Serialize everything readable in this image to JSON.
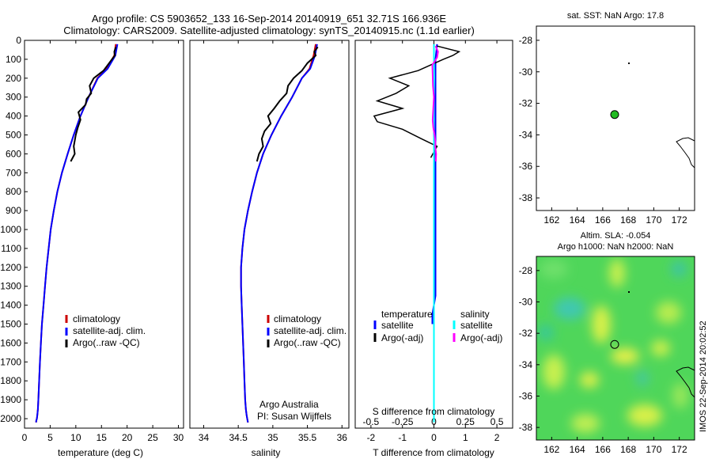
{
  "header": {
    "line1": "Argo profile: CS 5903652_133 16-Sep-2014 20140919_651 32.71S 166.936E",
    "line2": "Climatology: CARS2009. Satellite-adjusted climatology: synTS_20140915.nc (1.1d earlier)"
  },
  "colors": {
    "climatology": "#cc0000",
    "satellite_temp": "#0000ff",
    "argo": "#000000",
    "satellite_sal": "#00ffff",
    "argo_sal": "#ff00ff",
    "land": "#000000",
    "float_marker": "#22bb22"
  },
  "legend": {
    "climatology": "climatology",
    "satellite": "satellite-adj. clim.",
    "argo": "Argo(..raw -QC)"
  },
  "diff_legend": {
    "temperature": "temperature",
    "salinity": "salinity",
    "satellite_t": "satellite",
    "argo_t": "Argo(-adj)",
    "satellite_s": "satellite",
    "argo_s": "Argo(-adj)"
  },
  "credit": {
    "line1": "Argo Australia",
    "line2": "PI: Susan Wijffels"
  },
  "sst_map": {
    "title": "sat. SST: NaN Argo: 17.8"
  },
  "sla_map": {
    "title1": "Altim. SLA: -0.054",
    "title2": "Argo h1000: NaN h2000: NaN"
  },
  "stamp": "IMOS 22-Sep-2014 20:02:52",
  "chart_data": [
    {
      "type": "line",
      "panel": "temperature",
      "xlabel": "temperature (deg C)",
      "ylabel": "",
      "xlim": [
        0,
        31
      ],
      "ylim": [
        2050,
        0
      ],
      "xticks": [
        0,
        5,
        10,
        15,
        20,
        25,
        30
      ],
      "yticks": [
        0,
        100,
        200,
        300,
        400,
        500,
        600,
        700,
        800,
        900,
        1000,
        1100,
        1200,
        1300,
        1400,
        1500,
        1600,
        1700,
        1800,
        1900,
        2000
      ],
      "series": [
        {
          "name": "climatology",
          "color": "#cc0000",
          "x": [
            17.8,
            17.5,
            16,
            14.2,
            12.5,
            10.9,
            9.6,
            8.4,
            7.3,
            6.4,
            5.7,
            5.1,
            4.7,
            4.3,
            4.0,
            3.7,
            3.4,
            3.2,
            3.0,
            2.85,
            2.7,
            2.6,
            2.5,
            2.4,
            2.3,
            2.25
          ],
          "y": [
            20,
            80,
            150,
            200,
            300,
            400,
            500,
            600,
            700,
            800,
            900,
            1000,
            1100,
            1200,
            1300,
            1400,
            1500,
            1600,
            1700,
            1800,
            1900,
            1950,
            1980,
            2000,
            2010,
            2020
          ]
        },
        {
          "name": "satellite-adj. clim.",
          "color": "#0000ff",
          "x": [
            18.1,
            17.7,
            16.2,
            14.3,
            12.5,
            10.9,
            9.6,
            8.4,
            7.3,
            6.4,
            5.7,
            5.1,
            4.7,
            4.3,
            4.0,
            3.7,
            3.4,
            3.2,
            3.0,
            2.85,
            2.7,
            2.6,
            2.5,
            2.4,
            2.3,
            2.25
          ],
          "y": [
            20,
            80,
            150,
            200,
            300,
            400,
            500,
            600,
            700,
            800,
            900,
            1000,
            1100,
            1200,
            1300,
            1400,
            1500,
            1600,
            1700,
            1800,
            1900,
            1950,
            1980,
            2000,
            2010,
            2020
          ]
        },
        {
          "name": "Argo(..raw -QC)",
          "color": "#000000",
          "x": [
            17.8,
            17.5,
            17.6,
            16.5,
            15.4,
            13.5,
            12.7,
            13.0,
            12.1,
            11.9,
            10.5,
            10.9,
            10.4,
            10.0,
            9.6,
            9.8,
            9.0
          ],
          "y": [
            35,
            60,
            80,
            120,
            160,
            200,
            240,
            280,
            310,
            340,
            380,
            420,
            460,
            500,
            560,
            600,
            640
          ]
        }
      ]
    },
    {
      "type": "line",
      "panel": "salinity",
      "xlabel": "salinity",
      "xlim": [
        33.8,
        36.1
      ],
      "ylim": [
        2050,
        0
      ],
      "xticks": [
        34,
        34.5,
        35,
        35.5,
        36
      ],
      "series": [
        {
          "name": "climatology",
          "color": "#cc0000",
          "x": [
            35.62,
            35.59,
            35.53,
            35.42,
            35.28,
            35.12,
            34.98,
            34.86,
            34.77,
            34.7,
            34.64,
            34.59,
            34.56,
            34.54,
            34.54,
            34.55,
            34.56,
            34.57,
            34.58,
            34.59,
            34.6,
            34.61,
            34.62,
            34.63,
            34.64
          ],
          "y": [
            20,
            80,
            150,
            200,
            300,
            400,
            500,
            600,
            700,
            800,
            900,
            1000,
            1100,
            1200,
            1300,
            1400,
            1500,
            1600,
            1700,
            1800,
            1900,
            1950,
            1980,
            2000,
            2020
          ]
        },
        {
          "name": "satellite-adj. clim.",
          "color": "#0000ff",
          "x": [
            35.64,
            35.61,
            35.54,
            35.42,
            35.28,
            35.12,
            34.98,
            34.86,
            34.77,
            34.7,
            34.64,
            34.59,
            34.56,
            34.54,
            34.54,
            34.55,
            34.56,
            34.57,
            34.58,
            34.59,
            34.6,
            34.61,
            34.62,
            34.63,
            34.64
          ],
          "y": [
            20,
            80,
            150,
            200,
            300,
            400,
            500,
            600,
            700,
            800,
            900,
            1000,
            1100,
            1200,
            1300,
            1400,
            1500,
            1600,
            1700,
            1800,
            1900,
            1950,
            1980,
            2000,
            2020
          ]
        },
        {
          "name": "Argo(..raw -QC)",
          "color": "#000000",
          "x": [
            35.65,
            35.6,
            35.62,
            35.5,
            35.42,
            35.3,
            35.22,
            35.2,
            35.1,
            35.02,
            34.93,
            34.97,
            34.88,
            34.84,
            34.86,
            34.8,
            34.77
          ],
          "y": [
            35,
            60,
            80,
            120,
            160,
            200,
            240,
            280,
            320,
            360,
            400,
            440,
            480,
            520,
            560,
            600,
            640
          ]
        }
      ]
    },
    {
      "type": "line",
      "panel": "difference",
      "xlabel": "T difference from climatology",
      "xlabel_top": "S difference from climatology",
      "xlim": [
        -2.5,
        2.5
      ],
      "ylim": [
        2050,
        0
      ],
      "xticks": [
        -2,
        -1,
        0,
        1,
        2
      ],
      "xticks_s": [
        -0.5,
        -0.25,
        0,
        0.25,
        0.5
      ],
      "series": [
        {
          "name": "temperature satellite",
          "color": "#0000ff",
          "x": [
            0.1,
            0.05,
            0.05,
            0.05,
            0.05,
            0.05,
            0.05,
            0.05,
            0.05,
            0.05,
            0.05,
            0.05,
            0.05,
            0.05,
            0.05,
            0.0,
            -0.05,
            -0.05
          ],
          "y": [
            20,
            100,
            200,
            300,
            400,
            500,
            600,
            700,
            800,
            900,
            1000,
            1100,
            1200,
            1300,
            1350,
            1400,
            1450,
            1500
          ]
        },
        {
          "name": "temperature Argo(-adj)",
          "color": "#000000",
          "x": [
            0.1,
            0.8,
            0.6,
            0.3,
            -0.1,
            -0.5,
            -1.4,
            -0.8,
            -1.2,
            -1.8,
            -1.0,
            -1.9,
            -1.8,
            -1.0,
            -0.4,
            0.1,
            0.0,
            -0.1
          ],
          "y": [
            30,
            60,
            80,
            100,
            130,
            160,
            200,
            240,
            280,
            320,
            360,
            400,
            430,
            470,
            520,
            560,
            590,
            620
          ]
        },
        {
          "name": "salinity satellite",
          "color": "#00ffff",
          "x": [
            0.0,
            0.0,
            0.01,
            0.0,
            0.0,
            0.0,
            0.0,
            0.0,
            0.0,
            0.0,
            0.0,
            0.0,
            0.0,
            0.0,
            0.0,
            0.0,
            0.0,
            0.0,
            0.0,
            0.0,
            0.0,
            0.0
          ],
          "y": [
            20,
            100,
            200,
            300,
            400,
            500,
            600,
            700,
            800,
            900,
            1000,
            1100,
            1200,
            1300,
            1400,
            1500,
            1600,
            1700,
            1800,
            1900,
            2000,
            2020
          ]
        },
        {
          "name": "salinity Argo(-adj)",
          "color": "#ff00ff",
          "x": [
            0.05,
            0.13,
            0.1,
            -0.05,
            -0.04,
            -0.03,
            0.0,
            -0.02,
            -0.04,
            -0.02,
            0.02,
            0.05,
            0.04,
            0.07,
            0.06
          ],
          "y": [
            30,
            60,
            90,
            130,
            180,
            240,
            300,
            360,
            420,
            460,
            500,
            540,
            560,
            600,
            640
          ]
        }
      ]
    },
    {
      "type": "scatter",
      "panel": "sst_map",
      "xlim": [
        160.8,
        173.2
      ],
      "ylim": [
        -38.8,
        -27.1
      ],
      "xticks": [
        162,
        164,
        166,
        168,
        170,
        172
      ],
      "yticks": [
        -28,
        -30,
        -32,
        -34,
        -36,
        -38
      ],
      "points": [
        {
          "lon": 166.936,
          "lat": -32.71
        }
      ]
    },
    {
      "type": "heatmap",
      "panel": "sla_map",
      "xlim": [
        160.8,
        173.2
      ],
      "ylim": [
        -38.8,
        -27.1
      ],
      "xticks": [
        162,
        164,
        166,
        168,
        170,
        172
      ],
      "yticks": [
        -28,
        -30,
        -32,
        -34,
        -36,
        -38
      ],
      "points": [
        {
          "lon": 166.936,
          "lat": -32.71
        }
      ]
    }
  ]
}
